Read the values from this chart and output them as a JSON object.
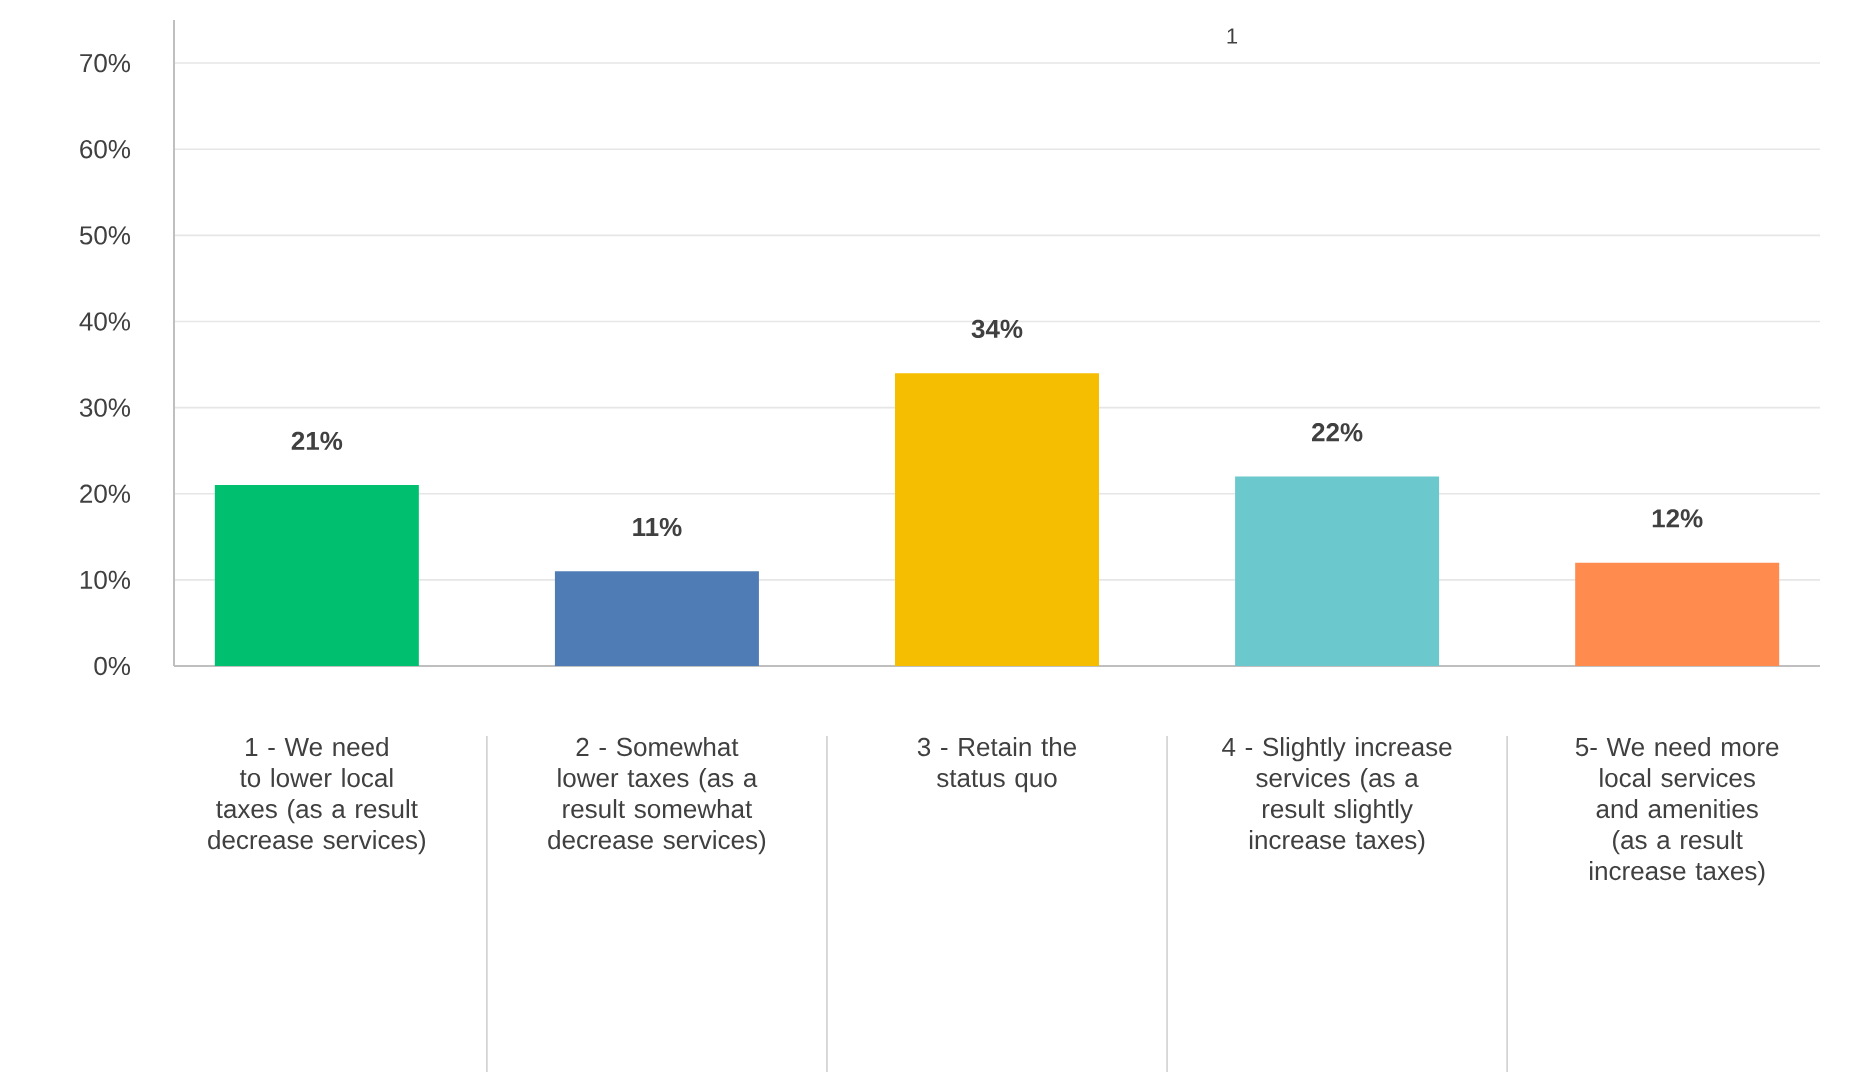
{
  "chart_data": {
    "type": "bar",
    "categories": [
      "1 - We need to lower local taxes (as a result decrease services)",
      "2 - Somewhat lower taxes (as a result somewhat decrease services)",
      "3 - Retain the status quo",
      "4 - Slightly increase services (as a result slightly increase taxes)",
      "5- We need more local services and amenities (as a result increase taxes)"
    ],
    "values": [
      21,
      11,
      34,
      22,
      12
    ],
    "value_labels": [
      "21%",
      "11%",
      "34%",
      "22%",
      "12%"
    ],
    "colors": [
      "#00bf6f",
      "#507cb6",
      "#f6be00",
      "#6bc8cd",
      "#ff8b4f"
    ],
    "ylim": [
      0,
      75
    ],
    "yticks": [
      {
        "value": 0,
        "label": "0%"
      },
      {
        "value": 10,
        "label": "10%"
      },
      {
        "value": 20,
        "label": "20%"
      },
      {
        "value": 30,
        "label": "30%"
      },
      {
        "value": 40,
        "label": "40%"
      },
      {
        "value": 50,
        "label": "50%"
      },
      {
        "value": 60,
        "label": "60%"
      },
      {
        "value": 70,
        "label": "70%"
      }
    ],
    "grid": "y",
    "annotations": [
      "1"
    ]
  }
}
